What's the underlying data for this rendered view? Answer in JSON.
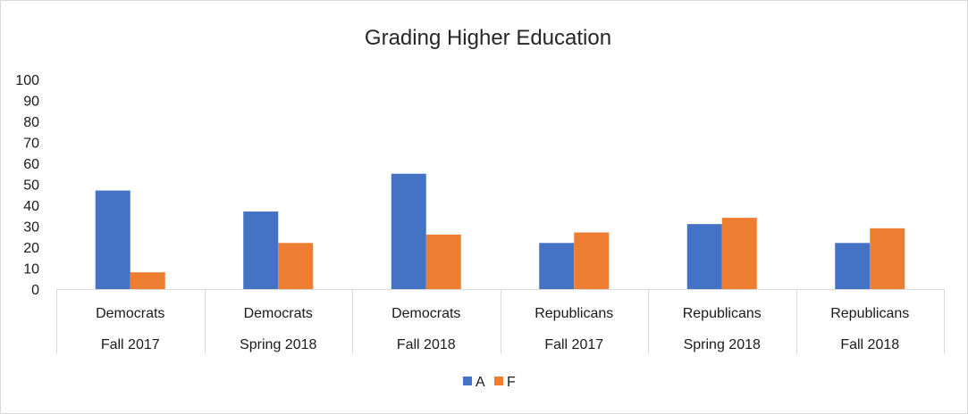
{
  "chart_data": {
    "type": "bar",
    "title": "Grading Higher Education",
    "xlabel": "",
    "ylabel": "",
    "ylim": [
      0,
      100
    ],
    "yticks": [
      0,
      10,
      20,
      30,
      40,
      50,
      60,
      70,
      80,
      90,
      100
    ],
    "grid": false,
    "legend_position": "bottom",
    "categories": [
      [
        "Democrats",
        "Fall 2017"
      ],
      [
        "Democrats",
        "Spring 2018"
      ],
      [
        "Democrats",
        "Fall 2018"
      ],
      [
        "Republicans",
        "Fall 2017"
      ],
      [
        "Republicans",
        "Spring 2018"
      ],
      [
        "Republicans",
        "Fall 2018"
      ]
    ],
    "series": [
      {
        "name": "A",
        "color": "#4472c4",
        "values": [
          47,
          37,
          55,
          22,
          31,
          22
        ]
      },
      {
        "name": "F",
        "color": "#ed7d31",
        "values": [
          8,
          22,
          26,
          27,
          34,
          29
        ]
      }
    ]
  }
}
